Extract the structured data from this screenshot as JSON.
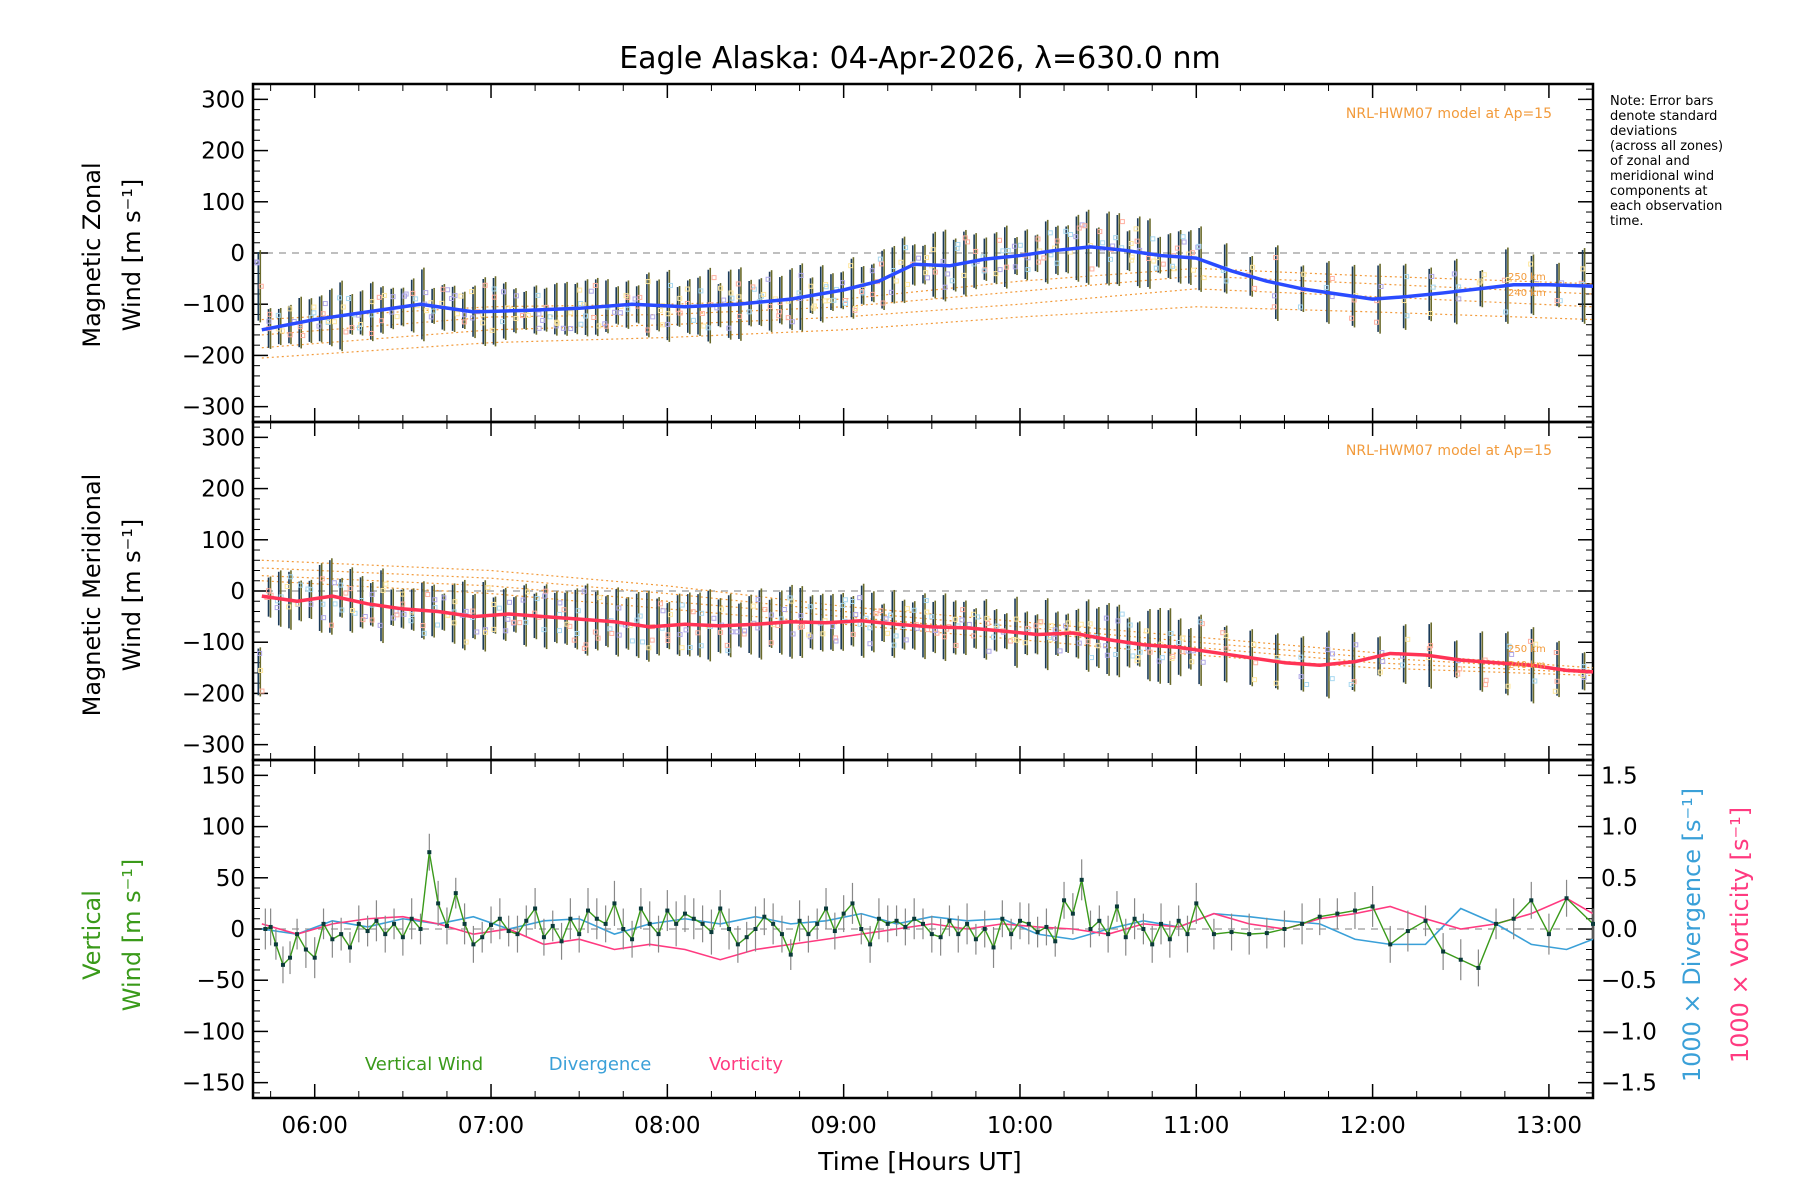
{
  "chart_data": [
    {
      "type": "line",
      "panel": "zonal",
      "title": "Eagle Alaska: 04-Apr-2026, λ=630.0 nm",
      "ylabel_line1": "Magnetic Zonal",
      "ylabel_line2": "Wind [m s⁻¹]",
      "xlim": [
        5.65,
        13.25
      ],
      "ylim": [
        -330,
        330
      ],
      "yticks": [
        -300,
        -200,
        -100,
        0,
        100,
        200,
        300
      ],
      "model_label": "NRL-HWM07 model at Ap=15",
      "model_tags": [
        "250 km",
        "240 km"
      ],
      "colors": {
        "mean": "#2a4bff",
        "model": "#f29a3a"
      },
      "series": [
        {
          "name": "Zonal mean wind",
          "x": [
            5.7,
            6.0,
            6.3,
            6.6,
            6.9,
            7.2,
            7.5,
            7.8,
            8.1,
            8.4,
            8.7,
            9.0,
            9.2,
            9.4,
            9.6,
            9.8,
            10.0,
            10.2,
            10.4,
            10.6,
            10.8,
            11.0,
            11.2,
            11.4,
            11.6,
            11.8,
            12.0,
            12.2,
            12.4,
            12.6,
            12.8,
            13.0,
            13.25
          ],
          "values": [
            -150,
            -130,
            -115,
            -100,
            -115,
            -112,
            -108,
            -100,
            -105,
            -100,
            -90,
            -72,
            -55,
            -22,
            -25,
            -12,
            -5,
            5,
            12,
            5,
            -5,
            -10,
            -35,
            -55,
            -70,
            -80,
            -90,
            -85,
            -78,
            -70,
            -62,
            -62,
            -65
          ]
        }
      ],
      "model_curves": [
        {
          "name": "HWM07 a",
          "x": [
            5.7,
            7.0,
            8.0,
            9.0,
            10.0,
            11.0,
            12.0,
            13.25
          ],
          "values": [
            -130,
            -105,
            -100,
            -90,
            -55,
            -30,
            -45,
            -60
          ]
        },
        {
          "name": "HWM07 b",
          "x": [
            5.7,
            7.0,
            8.0,
            9.0,
            10.0,
            11.0,
            12.0,
            13.25
          ],
          "values": [
            -160,
            -125,
            -120,
            -105,
            -75,
            -45,
            -60,
            -80
          ]
        },
        {
          "name": "HWM07 c",
          "x": [
            5.7,
            7.0,
            8.0,
            9.0,
            10.0,
            11.0,
            12.0,
            13.25
          ],
          "values": [
            -185,
            -150,
            -140,
            -125,
            -100,
            -70,
            -85,
            -105
          ]
        },
        {
          "name": "HWM07 d",
          "x": [
            5.7,
            7.0,
            8.0,
            9.0,
            10.0,
            11.0,
            12.0,
            13.25
          ],
          "values": [
            -205,
            -175,
            -165,
            -150,
            -125,
            -105,
            -115,
            -130
          ]
        }
      ]
    },
    {
      "type": "line",
      "panel": "meridional",
      "ylabel_line1": "Magnetic Meridional",
      "ylabel_line2": "Wind [m s⁻¹]",
      "xlim": [
        5.65,
        13.25
      ],
      "ylim": [
        -330,
        330
      ],
      "yticks": [
        -300,
        -200,
        -100,
        0,
        100,
        200,
        300
      ],
      "model_label": "NRL-HWM07 model at Ap=15",
      "model_tags": [
        "250 km",
        "240 km"
      ],
      "colors": {
        "mean": "#ff3355",
        "model": "#f29a3a"
      },
      "series": [
        {
          "name": "Meridional mean wind",
          "x": [
            5.7,
            5.9,
            6.1,
            6.3,
            6.5,
            6.7,
            6.9,
            7.1,
            7.3,
            7.5,
            7.7,
            7.9,
            8.1,
            8.3,
            8.5,
            8.7,
            8.9,
            9.1,
            9.3,
            9.5,
            9.7,
            9.9,
            10.1,
            10.3,
            10.5,
            10.7,
            10.9,
            11.1,
            11.3,
            11.5,
            11.7,
            11.9,
            12.1,
            12.3,
            12.5,
            12.7,
            12.9,
            13.1,
            13.25
          ],
          "values": [
            -10,
            -20,
            -10,
            -25,
            -35,
            -40,
            -50,
            -45,
            -50,
            -55,
            -60,
            -70,
            -65,
            -68,
            -65,
            -60,
            -62,
            -58,
            -65,
            -70,
            -72,
            -78,
            -85,
            -82,
            -95,
            -105,
            -110,
            -120,
            -130,
            -140,
            -145,
            -138,
            -122,
            -125,
            -135,
            -140,
            -145,
            -155,
            -158
          ]
        }
      ],
      "model_curves": [
        {
          "name": "HWM07 a",
          "x": [
            5.7,
            7.0,
            8.0,
            9.0,
            10.0,
            11.0,
            12.0,
            13.25
          ],
          "values": [
            60,
            40,
            10,
            -30,
            -60,
            -90,
            -120,
            -150
          ]
        },
        {
          "name": "HWM07 b",
          "x": [
            5.7,
            7.0,
            8.0,
            9.0,
            10.0,
            11.0,
            12.0,
            13.25
          ],
          "values": [
            45,
            25,
            -5,
            -40,
            -70,
            -100,
            -130,
            -155
          ]
        },
        {
          "name": "HWM07 c",
          "x": [
            5.7,
            7.0,
            8.0,
            9.0,
            10.0,
            11.0,
            12.0,
            13.25
          ],
          "values": [
            30,
            10,
            -20,
            -50,
            -80,
            -110,
            -140,
            -160
          ]
        },
        {
          "name": "HWM07 d",
          "x": [
            5.7,
            7.0,
            8.0,
            9.0,
            10.0,
            11.0,
            12.0,
            13.25
          ],
          "values": [
            20,
            -5,
            -35,
            -65,
            -95,
            -125,
            -150,
            -165
          ]
        }
      ]
    },
    {
      "type": "line",
      "panel": "vertical",
      "ylabel_line1": "Vertical",
      "ylabel_line2": "Wind [m s⁻¹]",
      "y2label_div": "1000 × Divergence [s⁻¹]",
      "y2label_vort": "1000 × Vorticity [s⁻¹]",
      "xlabel": "Time [Hours UT]",
      "xlim": [
        5.65,
        13.25
      ],
      "ylim": [
        -165,
        165
      ],
      "y2lim": [
        -1.65,
        1.65
      ],
      "yticks": [
        -150,
        -100,
        -50,
        0,
        50,
        100,
        150
      ],
      "y2ticks": [
        -1.5,
        -1.0,
        -0.5,
        0.0,
        0.5,
        1.0,
        1.5
      ],
      "xticks": [
        "06:00",
        "07:00",
        "08:00",
        "09:00",
        "10:00",
        "11:00",
        "12:00",
        "13:00"
      ],
      "xtick_values": [
        6,
        7,
        8,
        9,
        10,
        11,
        12,
        13
      ],
      "legend": [
        "Vertical Wind",
        "Divergence",
        "Vorticity"
      ],
      "colors": {
        "vertical": "#3a9a1a",
        "divergence": "#3aa0d8",
        "vorticity": "#ff3a80"
      },
      "series": [
        {
          "name": "Vertical Wind",
          "x": [
            5.72,
            5.75,
            5.78,
            5.82,
            5.86,
            5.9,
            5.95,
            6.0,
            6.05,
            6.1,
            6.15,
            6.2,
            6.25,
            6.3,
            6.35,
            6.4,
            6.45,
            6.5,
            6.55,
            6.6,
            6.65,
            6.7,
            6.75,
            6.8,
            6.85,
            6.9,
            6.95,
            7.0,
            7.05,
            7.1,
            7.15,
            7.2,
            7.25,
            7.3,
            7.35,
            7.4,
            7.45,
            7.5,
            7.55,
            7.6,
            7.65,
            7.7,
            7.75,
            7.8,
            7.85,
            7.9,
            7.95,
            8.0,
            8.05,
            8.1,
            8.15,
            8.2,
            8.25,
            8.3,
            8.35,
            8.4,
            8.45,
            8.5,
            8.55,
            8.6,
            8.65,
            8.7,
            8.75,
            8.8,
            8.85,
            8.9,
            8.95,
            9.0,
            9.05,
            9.1,
            9.15,
            9.2,
            9.25,
            9.3,
            9.35,
            9.4,
            9.45,
            9.5,
            9.55,
            9.6,
            9.65,
            9.7,
            9.75,
            9.8,
            9.85,
            9.9,
            9.95,
            10.0,
            10.05,
            10.1,
            10.15,
            10.2,
            10.25,
            10.3,
            10.35,
            10.4,
            10.45,
            10.5,
            10.55,
            10.6,
            10.65,
            10.7,
            10.75,
            10.8,
            10.85,
            10.9,
            10.95,
            11.0,
            11.1,
            11.2,
            11.3,
            11.4,
            11.5,
            11.6,
            11.7,
            11.8,
            11.9,
            12.0,
            12.1,
            12.2,
            12.3,
            12.4,
            12.5,
            12.6,
            12.7,
            12.8,
            12.9,
            13.0,
            13.1,
            13.25
          ],
          "values": [
            0,
            2,
            -15,
            -35,
            -28,
            -5,
            -20,
            -28,
            5,
            -10,
            -5,
            -18,
            5,
            -2,
            8,
            -5,
            5,
            -8,
            10,
            0,
            75,
            25,
            3,
            35,
            5,
            -15,
            -8,
            4,
            10,
            -2,
            -5,
            8,
            20,
            -8,
            3,
            -12,
            10,
            -5,
            18,
            10,
            5,
            25,
            0,
            -10,
            20,
            5,
            -5,
            18,
            5,
            15,
            10,
            5,
            -3,
            20,
            0,
            -15,
            -8,
            0,
            12,
            5,
            -5,
            -25,
            8,
            -5,
            5,
            20,
            -2,
            15,
            25,
            0,
            -15,
            10,
            5,
            8,
            2,
            10,
            5,
            -5,
            -8,
            8,
            -5,
            5,
            -10,
            0,
            -18,
            10,
            -5,
            8,
            5,
            -3,
            2,
            -12,
            28,
            15,
            48,
            0,
            8,
            -5,
            22,
            -8,
            10,
            0,
            -15,
            5,
            -10,
            8,
            -5,
            25,
            -5,
            -3,
            -5,
            -4,
            0,
            5,
            12,
            15,
            18,
            22,
            -15,
            -2,
            8,
            -22,
            -30,
            -38,
            5,
            10,
            28,
            -5,
            30,
            5
          ],
          "errors": [
            20,
            18,
            15,
            18,
            16,
            15,
            18,
            20,
            15,
            18,
            16,
            15,
            18,
            15,
            20,
            18,
            15,
            18,
            20,
            15,
            18,
            22,
            18,
            15,
            20,
            18,
            15,
            18,
            20,
            15,
            18,
            15,
            20,
            18,
            15,
            18,
            20,
            18,
            22,
            20,
            18,
            22,
            20,
            18,
            20,
            22,
            18,
            20,
            22,
            18,
            20,
            18,
            22,
            18,
            20,
            18,
            15,
            22,
            18,
            20,
            18,
            15,
            20,
            18,
            15,
            20,
            18,
            18,
            20,
            15,
            18,
            20,
            18,
            15,
            18,
            20,
            15,
            18,
            18,
            15,
            18,
            20,
            15,
            18,
            20,
            18,
            15,
            18,
            20,
            15,
            18,
            15,
            18,
            20,
            20,
            18,
            15,
            18,
            15,
            18,
            20,
            15,
            18,
            20,
            18,
            15,
            18,
            20,
            15,
            18,
            20,
            15,
            18,
            20,
            18,
            15,
            18,
            20,
            18,
            20,
            15,
            18,
            20,
            18,
            15,
            20,
            18,
            20,
            18,
            15
          ]
        },
        {
          "name": "Divergence",
          "x": [
            5.7,
            5.9,
            6.1,
            6.3,
            6.5,
            6.7,
            6.9,
            7.1,
            7.3,
            7.5,
            7.7,
            7.9,
            8.1,
            8.3,
            8.5,
            8.7,
            8.9,
            9.1,
            9.3,
            9.5,
            9.7,
            9.9,
            10.1,
            10.3,
            10.5,
            10.7,
            10.9,
            11.1,
            11.3,
            11.5,
            11.7,
            11.9,
            12.1,
            12.3,
            12.5,
            12.7,
            12.9,
            13.1,
            13.25
          ],
          "values": [
            0.0,
            -0.05,
            0.08,
            0.02,
            0.1,
            0.05,
            0.12,
            0.0,
            0.08,
            0.1,
            -0.05,
            0.05,
            0.1,
            0.05,
            0.12,
            0.05,
            0.08,
            0.15,
            0.05,
            0.12,
            0.08,
            0.1,
            -0.05,
            -0.1,
            0.0,
            0.08,
            0.02,
            0.15,
            0.12,
            0.08,
            0.05,
            -0.1,
            -0.15,
            -0.15,
            0.2,
            0.05,
            -0.15,
            -0.2,
            -0.1
          ]
        },
        {
          "name": "Vorticity",
          "x": [
            5.7,
            5.9,
            6.1,
            6.3,
            6.5,
            6.7,
            6.9,
            7.1,
            7.3,
            7.5,
            7.7,
            7.9,
            8.1,
            8.3,
            8.5,
            8.7,
            8.9,
            9.1,
            9.3,
            9.5,
            9.7,
            9.9,
            10.1,
            10.3,
            10.5,
            10.7,
            10.9,
            11.1,
            11.3,
            11.5,
            11.7,
            11.9,
            12.1,
            12.3,
            12.5,
            12.7,
            12.9,
            13.1,
            13.25
          ],
          "values": [
            0.05,
            -0.05,
            0.05,
            0.1,
            0.12,
            0.05,
            -0.05,
            0.0,
            -0.15,
            -0.1,
            -0.2,
            -0.15,
            -0.2,
            -0.3,
            -0.2,
            -0.15,
            -0.1,
            -0.05,
            0.0,
            0.05,
            0.0,
            0.05,
            0.02,
            0.0,
            -0.05,
            0.05,
            0.02,
            0.15,
            0.05,
            0.0,
            0.1,
            0.15,
            0.22,
            0.1,
            0.0,
            0.05,
            0.15,
            0.3,
            0.15
          ]
        }
      ]
    }
  ],
  "note_lines": [
    "Note: Error bars",
    "denote standard",
    "deviations",
    "(across all zones)",
    "of zonal and",
    "meridional wind",
    "components at",
    "each observation",
    "time."
  ]
}
